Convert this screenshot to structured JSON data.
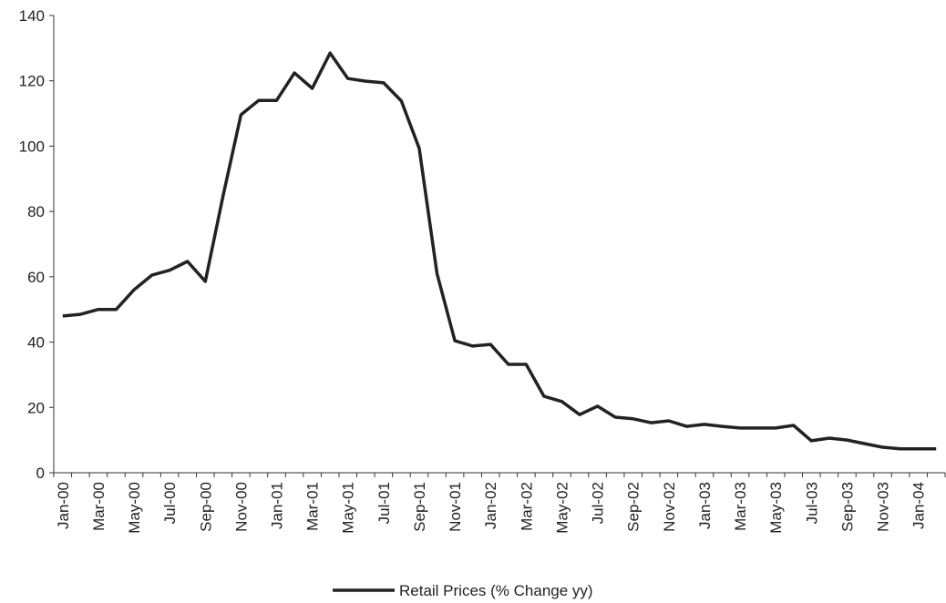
{
  "chart_data": {
    "type": "line",
    "categories": [
      "Jan-00",
      null,
      "Mar-00",
      null,
      "May-00",
      null,
      "Jul-00",
      null,
      "Sep-00",
      null,
      "Nov-00",
      null,
      "Jan-01",
      null,
      "Mar-01",
      null,
      "May-01",
      null,
      "Jul-01",
      null,
      "Sep-01",
      null,
      "Nov-01",
      null,
      "Jan-02",
      null,
      "Mar-02",
      null,
      "May-02",
      null,
      "Jul-02",
      null,
      "Sep-02",
      null,
      "Nov-02",
      null,
      "Jan-03",
      null,
      "Mar-03",
      null,
      "May-03",
      null,
      "Jul-03",
      null,
      "Sep-03",
      null,
      "Nov-03",
      null,
      "Jan-04",
      null
    ],
    "series": [
      {
        "name": "Retail Prices (% Change yy)",
        "color": "#222222",
        "values": [
          48.0,
          48.5,
          50,
          50,
          56,
          60.5,
          62,
          64.7,
          58.6,
          84.8,
          109.6,
          114,
          114,
          122.4,
          117.7,
          128.5,
          120.7,
          119.9,
          119.4,
          113.8,
          99.3,
          61,
          40.4,
          38.8,
          39.3,
          33.2,
          33.2,
          23.4,
          21.8,
          17.8,
          20.4,
          17,
          16.5,
          15.3,
          15.9,
          14.2,
          14.8,
          14.2,
          13.7,
          13.7,
          13.7,
          14.5,
          9.8,
          10.6,
          10,
          8.9,
          7.8,
          7.3,
          7.3,
          7.3
        ]
      }
    ],
    "ylim": [
      0,
      140
    ],
    "yticks": [
      0,
      20,
      40,
      60,
      80,
      100,
      120,
      140
    ],
    "grid": false,
    "legend": "bottom"
  }
}
